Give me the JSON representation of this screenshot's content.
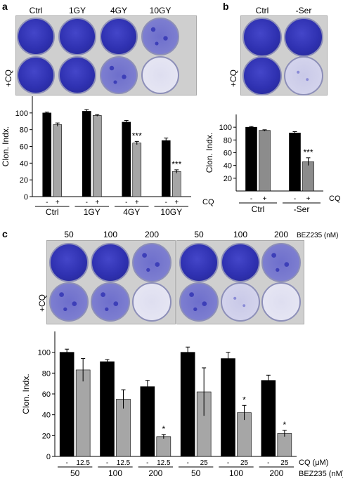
{
  "panels": {
    "a": {
      "letter": "a",
      "column_labels": [
        "Ctrl",
        "1GY",
        "4GY",
        "10GY"
      ],
      "row_label": "+CQ"
    },
    "b": {
      "letter": "b",
      "column_labels": [
        "Ctrl",
        "-Ser"
      ],
      "row_label": "+CQ"
    },
    "c": {
      "letter": "c",
      "column_labels": [
        "50",
        "100",
        "200",
        "50",
        "100",
        "200"
      ],
      "column_unit": "BEZ235 (nM)",
      "row_label": "+CQ"
    }
  },
  "chart_data": [
    {
      "id": "a",
      "type": "bar",
      "ylabel": "Clon. Indx.",
      "ylim": [
        0,
        120
      ],
      "yticks": [
        0,
        20,
        40,
        60,
        80,
        100
      ],
      "categories": [
        "Ctrl",
        "1GY",
        "4GY",
        "10GY"
      ],
      "cq_marks": [
        "-",
        "+"
      ],
      "cq_label": "CQ",
      "series": [
        {
          "values": [
            100,
            102,
            89,
            67
          ],
          "errors": [
            1,
            2,
            2,
            3
          ],
          "color": "#000000"
        },
        {
          "values": [
            86,
            97,
            64,
            30
          ],
          "errors": [
            2,
            1,
            2,
            2
          ],
          "color": "#a6a6a6"
        }
      ],
      "significance": [
        "",
        "",
        "***",
        "***"
      ]
    },
    {
      "id": "b",
      "type": "bar",
      "ylabel": "Clon. Indx.",
      "ylim": [
        0,
        120
      ],
      "yticks": [
        20,
        40,
        60,
        80,
        100
      ],
      "categories": [
        "Ctrl",
        "-Ser"
      ],
      "cq_marks": [
        "-",
        "+"
      ],
      "cq_label": "CQ",
      "series": [
        {
          "values": [
            100,
            91
          ],
          "errors": [
            1,
            2
          ],
          "color": "#000000"
        },
        {
          "values": [
            95,
            46
          ],
          "errors": [
            1,
            6
          ],
          "color": "#8c8c8c"
        }
      ],
      "significance": [
        "",
        "***"
      ]
    },
    {
      "id": "c",
      "type": "bar",
      "ylabel": "Clon. Indx.",
      "ylim": [
        0,
        120
      ],
      "yticks": [
        0,
        20,
        40,
        60,
        80,
        100
      ],
      "categories": [
        "50",
        "100",
        "200",
        "50",
        "100",
        "200"
      ],
      "cq_marks": [
        [
          "-",
          "12.5"
        ],
        [
          "-",
          "12.5"
        ],
        [
          "-",
          "12.5"
        ],
        [
          "-",
          "25"
        ],
        [
          "-",
          "25"
        ],
        [
          "-",
          "25"
        ]
      ],
      "cq_label": "CQ (μM)",
      "bez_label": "BEZ235 (nM)",
      "series": [
        {
          "values": [
            100,
            91,
            67,
            100,
            94,
            73
          ],
          "errors": [
            3,
            2,
            6,
            5,
            6,
            5
          ],
          "color": "#000000"
        },
        {
          "values": [
            83,
            55,
            19,
            62,
            42,
            22
          ],
          "errors": [
            11,
            9,
            2,
            23,
            7,
            3
          ],
          "color": "#a6a6a6"
        }
      ],
      "significance": [
        "",
        "",
        "*",
        "",
        "*",
        "*"
      ]
    }
  ]
}
